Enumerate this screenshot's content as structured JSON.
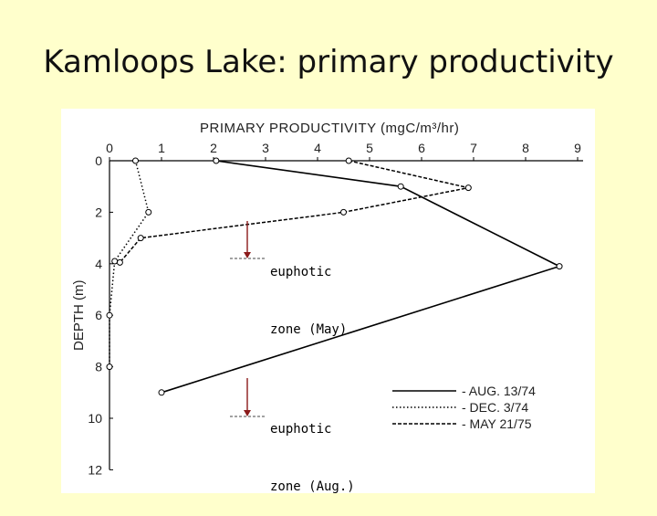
{
  "slide": {
    "title": "Kamloops Lake: primary productivity"
  },
  "annotations": {
    "may_line1": "euphotic",
    "may_line2": "zone (May)",
    "aug_line1": "euphotic",
    "aug_line2": "zone (Aug.)"
  },
  "colors": {
    "background": "#ffffcc",
    "annotation_arrow": "#8b1a1a"
  },
  "chart_data": {
    "type": "line",
    "title": "PRIMARY PRODUCTIVITY (mgC/m³/hr)",
    "xlabel": "PRIMARY PRODUCTIVITY (mgC/m³/hr)",
    "ylabel": "DEPTH (m)",
    "xlim": [
      0,
      9
    ],
    "ylim": [
      12,
      0
    ],
    "x_ticks": [
      "0",
      "1",
      "2",
      "3",
      "4",
      "5",
      "6",
      "7",
      "8",
      "9"
    ],
    "y_ticks": [
      "0",
      "2",
      "4",
      "6",
      "8",
      "10",
      "12"
    ],
    "legend_position": "bottom-right",
    "grid": false,
    "series": [
      {
        "name": "AUG. 13/74",
        "line_style": "solid",
        "points": [
          [
            2.05,
            0
          ],
          [
            5.6,
            1.0
          ],
          [
            8.65,
            4.1
          ],
          [
            1.0,
            9.0
          ]
        ]
      },
      {
        "name": "DEC. 3/74",
        "line_style": "dotted",
        "points": [
          [
            0.5,
            0
          ],
          [
            0.75,
            2.0
          ],
          [
            0.1,
            3.9
          ],
          [
            0,
            6.0
          ],
          [
            0,
            8.0
          ]
        ]
      },
      {
        "name": "MAY 21/75",
        "line_style": "dashed",
        "points": [
          [
            4.6,
            0
          ],
          [
            6.9,
            1.05
          ],
          [
            4.5,
            2.0
          ],
          [
            0.6,
            3.0
          ],
          [
            0.2,
            3.95
          ]
        ]
      }
    ]
  }
}
